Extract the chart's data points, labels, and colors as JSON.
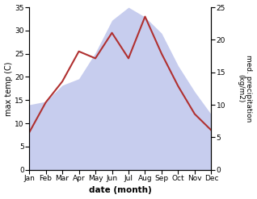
{
  "months": [
    "Jan",
    "Feb",
    "Mar",
    "Apr",
    "May",
    "Jun",
    "Jul",
    "Aug",
    "Sep",
    "Oct",
    "Nov",
    "Dec"
  ],
  "temperature": [
    8.0,
    14.5,
    19.0,
    25.5,
    24.0,
    29.5,
    24.0,
    33.0,
    25.0,
    18.0,
    12.0,
    8.5
  ],
  "precipitation": [
    10.0,
    10.5,
    13.0,
    14.0,
    18.0,
    23.0,
    25.0,
    23.5,
    21.0,
    16.0,
    12.0,
    8.5
  ],
  "temp_color": "#b03030",
  "precip_color": "#b0b8e8",
  "ylabel_left": "max temp (C)",
  "ylabel_right": "med. precipitation\n(kg/m2)",
  "xlabel": "date (month)",
  "ylim_left": [
    0,
    35
  ],
  "ylim_right": [
    0,
    25
  ],
  "yticks_left": [
    0,
    5,
    10,
    15,
    20,
    25,
    30,
    35
  ],
  "yticks_right": [
    0,
    5,
    10,
    15,
    20,
    25
  ],
  "plot_bg_color": "#ffffff"
}
